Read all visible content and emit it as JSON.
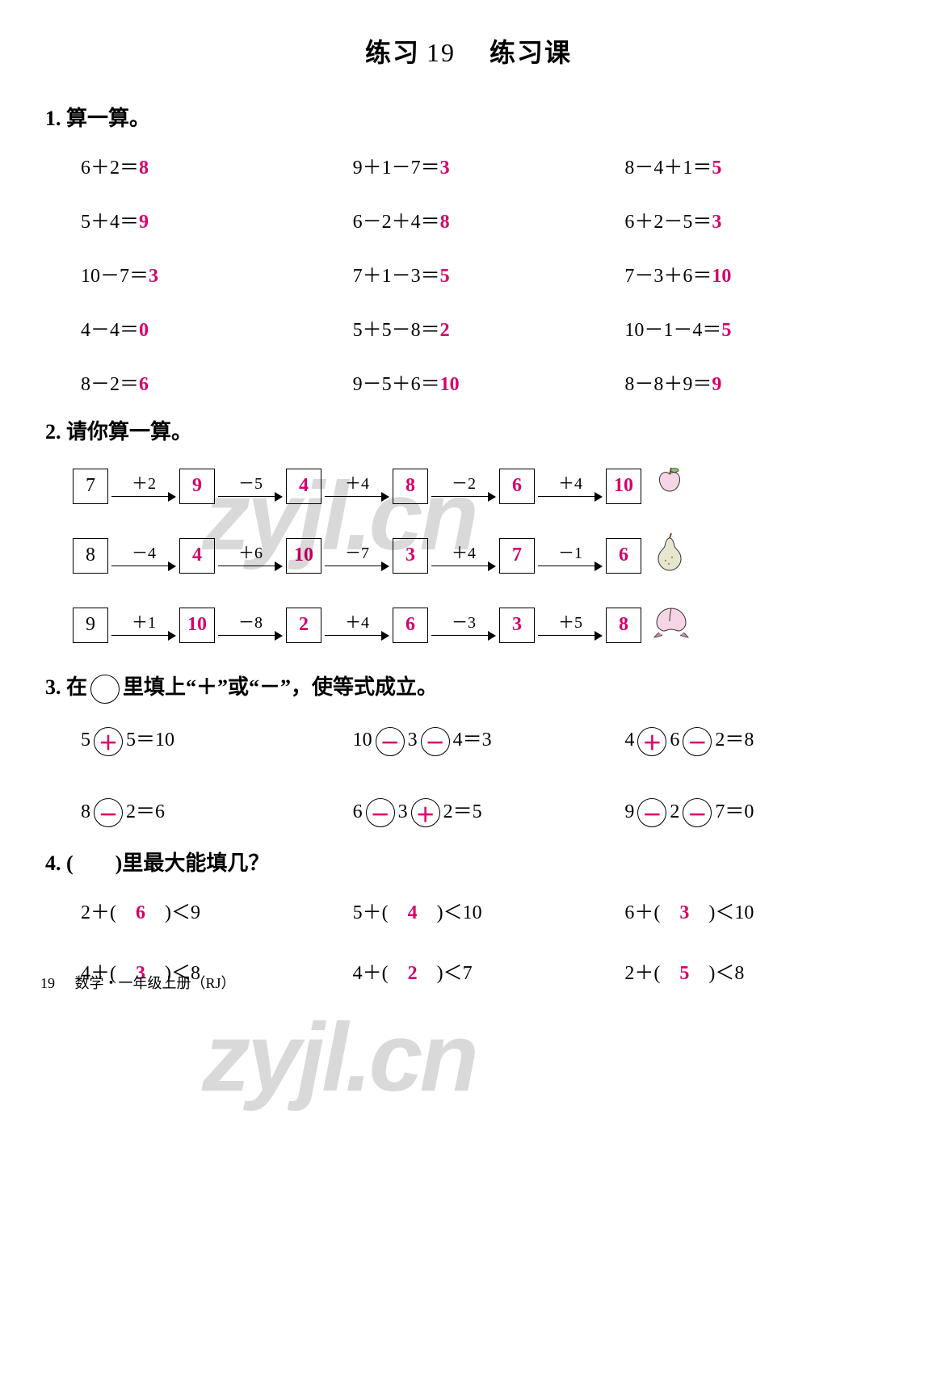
{
  "colors": {
    "answer": "#d6006c",
    "text": "#000000",
    "bg": "#ffffff",
    "watermark": "rgba(0,0,0,0.15)"
  },
  "fonts": {
    "cjk": "SimSun",
    "latin": "Times New Roman",
    "title_size": 32,
    "body_size": 24
  },
  "title": {
    "prefix": "练习",
    "num": "19",
    "suffix": "练习课"
  },
  "q1": {
    "label": "1. 算一算。",
    "rows": [
      [
        {
          "expr": "6＋2＝",
          "ans": "8"
        },
        {
          "expr": "9＋1－7＝",
          "ans": "3"
        },
        {
          "expr": "8－4＋1＝",
          "ans": "5"
        }
      ],
      [
        {
          "expr": "5＋4＝",
          "ans": "9"
        },
        {
          "expr": "6－2＋4＝",
          "ans": "8"
        },
        {
          "expr": "6＋2－5＝",
          "ans": "3"
        }
      ],
      [
        {
          "expr": "10－7＝",
          "ans": "3"
        },
        {
          "expr": "7＋1－3＝",
          "ans": "5"
        },
        {
          "expr": "7－3＋6＝",
          "ans": "10"
        }
      ],
      [
        {
          "expr": "4－4＝",
          "ans": "0"
        },
        {
          "expr": "5＋5－8＝",
          "ans": "2"
        },
        {
          "expr": "10－1－4＝",
          "ans": "5"
        }
      ],
      [
        {
          "expr": "8－2＝",
          "ans": "6"
        },
        {
          "expr": "9－5＋6＝",
          "ans": "10"
        },
        {
          "expr": "8－8＋9＝",
          "ans": "9"
        }
      ]
    ]
  },
  "q2": {
    "label": "2. 请你算一算。",
    "chains": [
      {
        "start": "7",
        "ops": [
          "＋2",
          "－5",
          "＋4",
          "－2",
          "＋4"
        ],
        "results": [
          "9",
          "4",
          "8",
          "6",
          "10"
        ],
        "fruit": "apple",
        "fruit_colors": {
          "fill": "#f5d5e6",
          "stem": "#7a5230",
          "leaf": "#8fbf6f"
        }
      },
      {
        "start": "8",
        "ops": [
          "－4",
          "＋6",
          "－7",
          "＋4",
          "－1"
        ],
        "results": [
          "4",
          "10",
          "3",
          "7",
          "6"
        ],
        "fruit": "pear",
        "fruit_colors": {
          "fill": "#e8e6cf",
          "stem": "#7a5230",
          "spots": "#b09060"
        }
      },
      {
        "start": "9",
        "ops": [
          "＋1",
          "－8",
          "＋4",
          "－3",
          "＋5"
        ],
        "results": [
          "10",
          "2",
          "6",
          "3",
          "8"
        ],
        "fruit": "peach",
        "fruit_colors": {
          "fill": "#f5d5e6",
          "leaf": "#d48fb5"
        }
      }
    ]
  },
  "q3": {
    "label": "3. 在　　里填上\"＋\"或\"－\"，使等式成立。",
    "label_circle_in_text": true,
    "rows": [
      [
        {
          "parts": [
            "5",
            "○",
            "5＝10"
          ],
          "fills": [
            "＋"
          ]
        },
        {
          "parts": [
            "10",
            "○",
            "3",
            "○",
            "4＝3"
          ],
          "fills": [
            "－",
            "－"
          ]
        },
        {
          "parts": [
            "4",
            "○",
            "6",
            "○",
            "2＝8"
          ],
          "fills": [
            "＋",
            "－"
          ]
        }
      ],
      [
        {
          "parts": [
            "8",
            "○",
            "2＝6"
          ],
          "fills": [
            "－"
          ]
        },
        {
          "parts": [
            "6",
            "○",
            "3",
            "○",
            "2＝5"
          ],
          "fills": [
            "－",
            "＋"
          ]
        },
        {
          "parts": [
            "9",
            "○",
            "2",
            "○",
            "7＝0"
          ],
          "fills": [
            "－",
            "－"
          ]
        }
      ]
    ]
  },
  "q4": {
    "label": "4. (　　)里最大能填几？",
    "rows": [
      [
        {
          "pre": "2＋(",
          "ans": "6",
          "post": ")＜9"
        },
        {
          "pre": "5＋(",
          "ans": "4",
          "post": ")＜10"
        },
        {
          "pre": "6＋(",
          "ans": "3",
          "post": ")＜10"
        }
      ],
      [
        {
          "pre": "4＋(",
          "ans": "3",
          "post": ")＜8"
        },
        {
          "pre": "4＋(",
          "ans": "2",
          "post": ")＜7"
        },
        {
          "pre": "2＋(",
          "ans": "5",
          "post": ")＜8"
        }
      ]
    ]
  },
  "footer": {
    "page": "19",
    "text": "数学・一年级上册（RJ）"
  },
  "watermark": "zyjl.cn"
}
